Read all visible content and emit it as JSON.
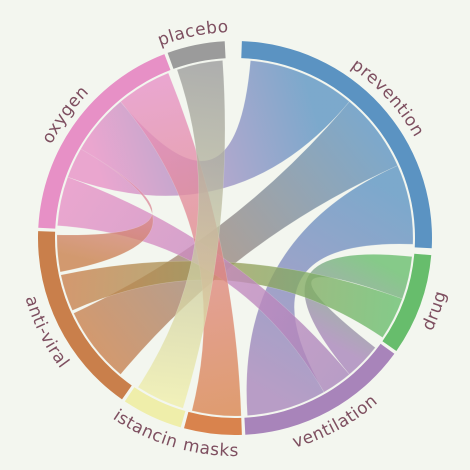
{
  "diagram": {
    "type": "chord",
    "background": "#f3f6ef",
    "label_color": "#7e4f60",
    "groups": [
      {
        "id": "prevention",
        "label": "prevention",
        "color": "#5b93c2",
        "start_deg": 2,
        "end_deg": 93
      },
      {
        "id": "drug",
        "label": "drug",
        "color": "#67bd6c",
        "start_deg": 95,
        "end_deg": 125
      },
      {
        "id": "ventilation",
        "label": "ventilation",
        "color": "#a884ba",
        "start_deg": 126,
        "end_deg": 177
      },
      {
        "id": "masks",
        "label": "masks",
        "color": "#d9834d",
        "start_deg": 178,
        "end_deg": 195
      },
      {
        "id": "istancin",
        "label": "istancin",
        "color": "#efeeaa",
        "start_deg": 196,
        "end_deg": 214
      },
      {
        "id": "anti-viral",
        "label": "anti-viral",
        "color": "#c97f4b",
        "start_deg": 215,
        "end_deg": 272
      },
      {
        "id": "oxygen",
        "label": "oxygen",
        "color": "#e790c6",
        "start_deg": 273,
        "end_deg": 339
      },
      {
        "id": "placebo",
        "label": "placebo",
        "color": "#9b9b9b",
        "start_deg": 340,
        "end_deg": 357
      }
    ],
    "chords": [
      {
        "source": "prevention",
        "target": "oxygen",
        "s": [
          5,
          40
        ],
        "t": [
          290,
          320
        ]
      },
      {
        "source": "prevention",
        "target": "anti-viral",
        "s": [
          40,
          66
        ],
        "t": [
          220,
          245
        ]
      },
      {
        "source": "prevention",
        "target": "ventilation",
        "s": [
          66,
          92
        ],
        "t": [
          150,
          176
        ]
      },
      {
        "source": "drug",
        "target": "ventilation",
        "s": [
          96,
          110
        ],
        "t": [
          128,
          140
        ]
      },
      {
        "source": "drug",
        "target": "anti-viral",
        "s": [
          110,
          124
        ],
        "t": [
          246,
          258
        ]
      },
      {
        "source": "ventilation",
        "target": "oxygen",
        "s": [
          140,
          150
        ],
        "t": [
          274,
          290
        ]
      },
      {
        "source": "masks",
        "target": "oxygen",
        "s": [
          178,
          194
        ],
        "t": [
          320,
          338
        ]
      },
      {
        "source": "istancin",
        "target": "placebo",
        "s": [
          197,
          213
        ],
        "t": [
          341,
          356
        ]
      },
      {
        "source": "anti-viral",
        "target": "oxygen",
        "s": [
          259,
          271
        ],
        "t": [
          300,
          300
        ]
      }
    ]
  }
}
